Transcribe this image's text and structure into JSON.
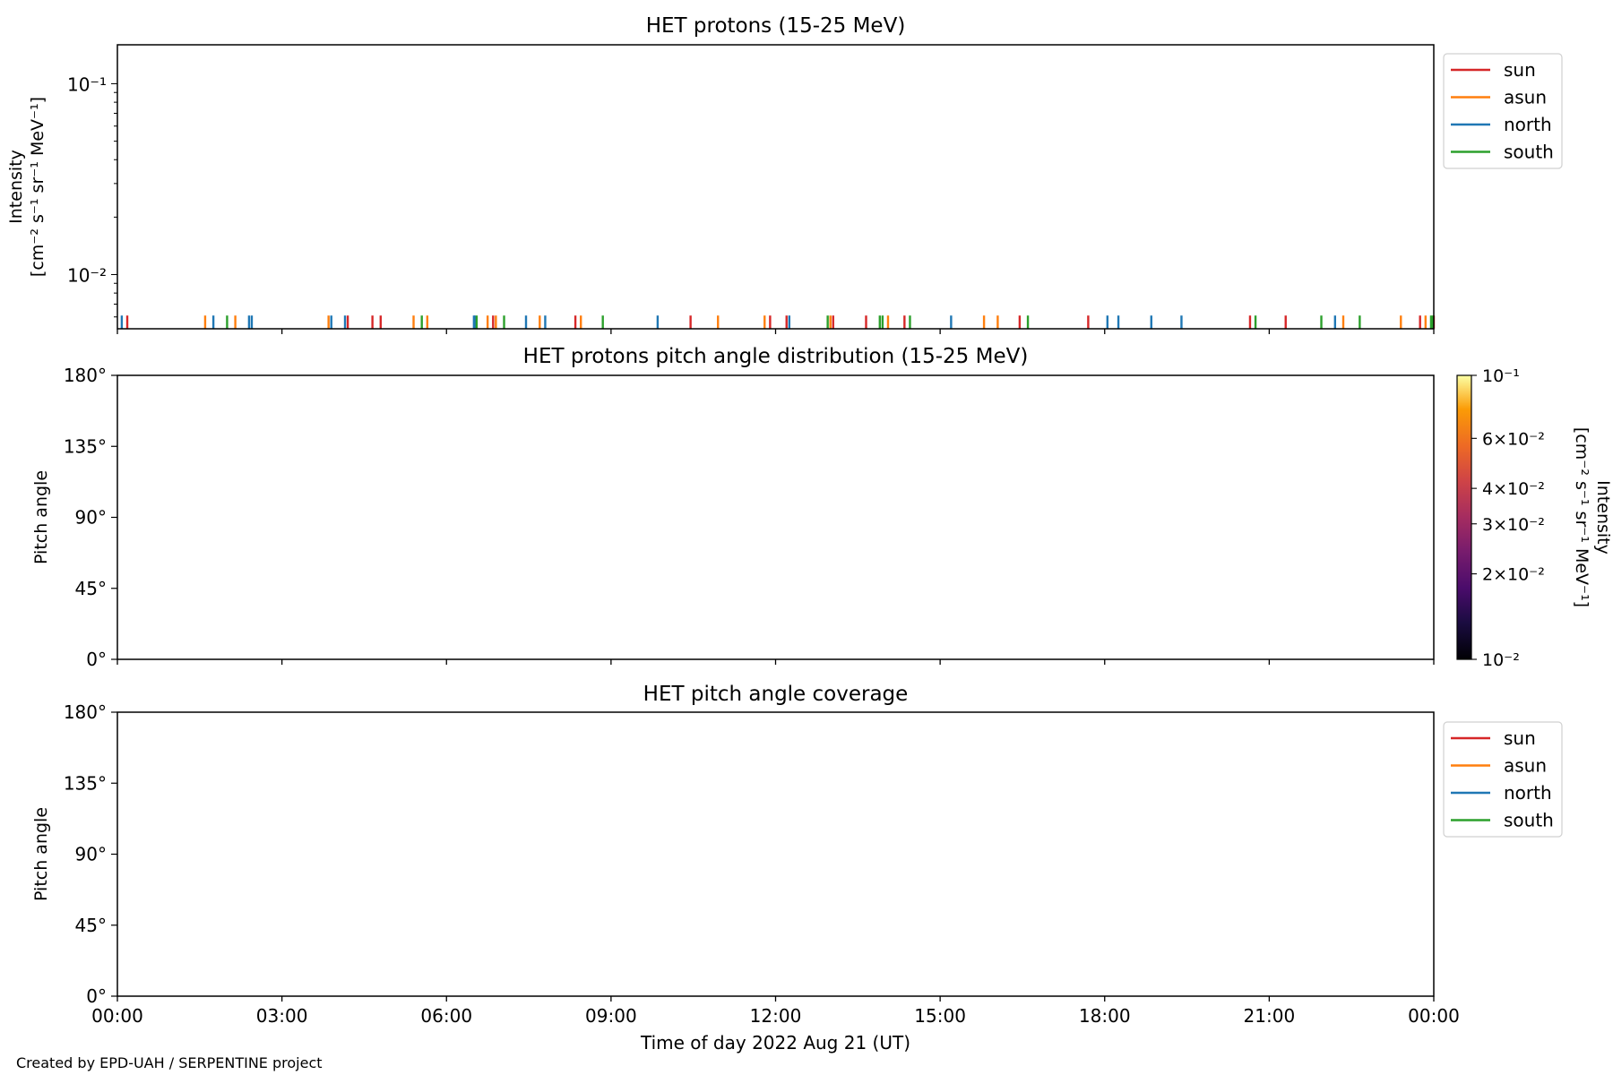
{
  "credit": "Created by EPD-UAH / SERPENTINE project",
  "chart_data": [
    {
      "type": "line",
      "title": "HET protons (15-25 MeV)",
      "ylabel_line1": "Intensity",
      "ylabel_line2": "[cm⁻² s⁻¹ sr⁻¹ MeV⁻¹]",
      "yscale": "log",
      "ylim": [
        0.0052,
        0.16
      ],
      "yticks": [
        {
          "value": 0.01,
          "label": "10⁻²"
        },
        {
          "value": 0.1,
          "label": "10⁻¹"
        }
      ],
      "xlim_hours": [
        0,
        24
      ],
      "legend": {
        "placement": "outside-right",
        "entries": [
          "sun",
          "asun",
          "north",
          "south"
        ]
      },
      "series": [
        {
          "name": "sun",
          "color": "#d62728",
          "spikes_hours": [
            0.18,
            4.2,
            4.65,
            4.8,
            6.85,
            8.35,
            10.45,
            11.9,
            12.2,
            13.05,
            13.65,
            14.35,
            16.45,
            17.7,
            20.65,
            21.3,
            23.75,
            24.0
          ]
        },
        {
          "name": "asun",
          "color": "#ff7f0e",
          "spikes_hours": [
            1.6,
            2.15,
            3.85,
            5.4,
            5.65,
            6.75,
            6.9,
            7.7,
            8.45,
            10.95,
            11.8,
            13.0,
            14.05,
            15.8,
            16.05,
            22.35,
            23.4,
            23.85
          ]
        },
        {
          "name": "north",
          "color": "#1f77b4",
          "spikes_hours": [
            0.08,
            1.75,
            2.4,
            2.45,
            3.9,
            4.15,
            6.5,
            6.52,
            7.45,
            7.8,
            9.85,
            12.25,
            15.2,
            18.05,
            18.25,
            18.85,
            19.4,
            22.2
          ]
        },
        {
          "name": "south",
          "color": "#2ca02c",
          "spikes_hours": [
            2.0,
            5.55,
            6.55,
            7.05,
            8.85,
            12.95,
            13.9,
            13.95,
            14.45,
            16.6,
            20.75,
            21.95,
            22.65,
            23.95,
            23.98
          ]
        }
      ],
      "spike_value": 0.0061
    },
    {
      "type": "heatmap",
      "title": "HET protons pitch angle distribution (15-25 MeV)",
      "ylabel": "Pitch angle",
      "ylim": [
        0,
        180
      ],
      "yticks": [
        "0°",
        "45°",
        "90°",
        "135°",
        "180°"
      ],
      "xlim_hours": [
        0,
        24
      ],
      "values": [],
      "colorbar": {
        "colormap": "inferno",
        "scale": "log",
        "range": [
          0.01,
          0.1
        ],
        "label_line1": "Intensity",
        "label_line2": "[cm⁻² s⁻¹ sr⁻¹ MeV⁻¹]",
        "ticks": [
          {
            "value": 0.01,
            "label": "10⁻²"
          },
          {
            "value": 0.02,
            "label": "2×10⁻²"
          },
          {
            "value": 0.03,
            "label": "3×10⁻²"
          },
          {
            "value": 0.04,
            "label": "4×10⁻²"
          },
          {
            "value": 0.06,
            "label": "6×10⁻²"
          },
          {
            "value": 0.1,
            "label": "10⁻¹"
          }
        ]
      }
    },
    {
      "type": "line",
      "title": "HET pitch angle coverage",
      "ylabel": "Pitch angle",
      "ylim": [
        0,
        180
      ],
      "yticks": [
        "0°",
        "45°",
        "90°",
        "135°",
        "180°"
      ],
      "xlim_hours": [
        0,
        24
      ],
      "xticks": [
        "00:00",
        "03:00",
        "06:00",
        "09:00",
        "12:00",
        "15:00",
        "18:00",
        "21:00",
        "00:00"
      ],
      "xlabel": "Time of day 2022 Aug 21 (UT)",
      "legend": {
        "placement": "outside-right",
        "entries": [
          "sun",
          "asun",
          "north",
          "south"
        ]
      },
      "series": [
        {
          "name": "sun",
          "color": "#d62728",
          "values": []
        },
        {
          "name": "asun",
          "color": "#ff7f0e",
          "values": []
        },
        {
          "name": "north",
          "color": "#1f77b4",
          "values": []
        },
        {
          "name": "south",
          "color": "#2ca02c",
          "values": []
        }
      ]
    }
  ]
}
